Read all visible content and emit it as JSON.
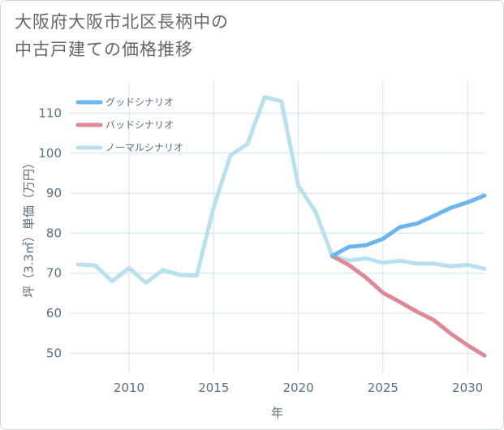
{
  "title": {
    "line1": "大阪府大阪市北区長柄中の",
    "line2": "中古戸建ての価格推移"
  },
  "chart_data": {
    "type": "line",
    "title": "大阪府大阪市北区長柄中の中古戸建ての価格推移",
    "xlabel": "年",
    "ylabel": "坪（3.3㎡）単価（万円）",
    "xlim": [
      2006.5,
      2031
    ],
    "ylim": [
      45,
      118
    ],
    "x_ticks": [
      2010,
      2015,
      2020,
      2025,
      2030
    ],
    "y_ticks": [
      50,
      60,
      70,
      80,
      90,
      100,
      110
    ],
    "legend_position": "top-left",
    "series": [
      {
        "name": "グッドシナリオ",
        "color": "#6cb6ef",
        "x": [
          2022,
          2023,
          2024,
          2025,
          2026,
          2027,
          2028,
          2029,
          2030,
          2031
        ],
        "values": [
          74.3,
          76.6,
          77,
          78.6,
          81.5,
          82.4,
          84.3,
          86.3,
          87.7,
          89.4
        ]
      },
      {
        "name": "バッドシナリオ",
        "color": "#de8a96",
        "x": [
          2022,
          2023,
          2024,
          2025,
          2026,
          2027,
          2028,
          2029,
          2030,
          2031
        ],
        "values": [
          74.3,
          72,
          68.9,
          65.1,
          62.8,
          60.4,
          58.3,
          54.9,
          52,
          49.4
        ]
      },
      {
        "name": "ノーマルシナリオ",
        "color": "#b9e0ee",
        "x": [
          2007,
          2008,
          2009,
          2010,
          2011,
          2012,
          2013,
          2014,
          2015,
          2016,
          2017,
          2018,
          2019,
          2020,
          2021,
          2022,
          2023,
          2024,
          2025,
          2026,
          2027,
          2028,
          2029,
          2030,
          2031
        ],
        "values": [
          72.2,
          71.9,
          68,
          71.3,
          67.6,
          70.8,
          69.6,
          69.4,
          86.5,
          99.5,
          102.3,
          114,
          113,
          91.8,
          85.5,
          74.3,
          73.2,
          73.7,
          72.6,
          73.1,
          72.4,
          72.4,
          71.7,
          72.1,
          71.1
        ]
      }
    ]
  }
}
